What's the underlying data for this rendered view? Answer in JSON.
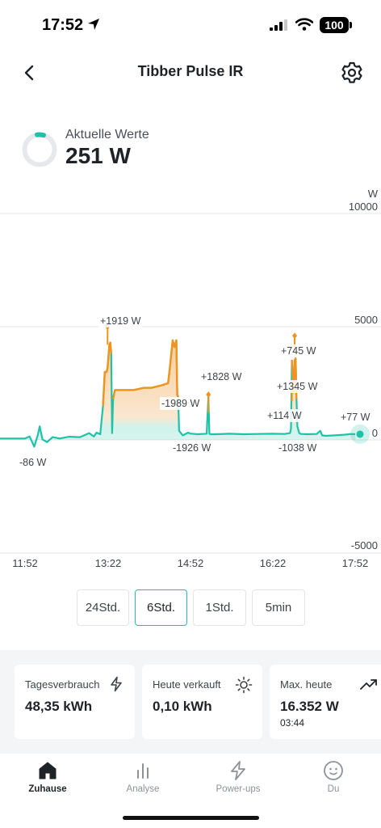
{
  "status_bar": {
    "time": "17:52",
    "battery": "100"
  },
  "header": {
    "title": "Tibber Pulse IR"
  },
  "current": {
    "label": "Aktuelle Werte",
    "value": "251 W"
  },
  "chart_data": {
    "type": "area",
    "y_unit": "W",
    "ylim": [
      -5000,
      10000
    ],
    "y_ticks": [
      "10000",
      "5000",
      "0",
      "-5000"
    ],
    "x_ticks": [
      "11:52",
      "13:22",
      "14:52",
      "16:22",
      "17:52"
    ],
    "x_range": [
      "11:52",
      "17:52"
    ],
    "grid": true,
    "series": [
      {
        "x": [
          "11:52",
          "11:57",
          "12:02",
          "12:06",
          "12:08",
          "12:11",
          "12:16",
          "12:22",
          "12:30",
          "12:40",
          "12:52",
          "13:02",
          "13:07",
          "13:10",
          "13:14",
          "13:17",
          "13:19",
          "13:21",
          "13:22",
          "13:24",
          "13:25",
          "13:26",
          "13:27",
          "13:28",
          "13:30",
          "13:33",
          "13:40",
          "13:50",
          "14:02",
          "14:10",
          "14:20",
          "14:28",
          "14:30",
          "14:33",
          "14:35",
          "14:37",
          "14:38",
          "14:39",
          "14:40",
          "14:42",
          "14:44",
          "14:50",
          "14:52",
          "15:00",
          "15:10",
          "15:12",
          "15:13",
          "15:14",
          "15:20",
          "15:35",
          "15:50",
          "16:05",
          "16:22",
          "16:35",
          "16:41",
          "16:42",
          "16:43",
          "16:44",
          "16:45",
          "16:46",
          "16:47",
          "16:48",
          "16:49",
          "16:51",
          "16:53",
          "17:00",
          "17:10",
          "17:14",
          "17:16",
          "17:20",
          "17:30",
          "17:40",
          "17:48",
          "17:52"
        ],
        "y": [
          60,
          150,
          -300,
          220,
          600,
          20,
          -100,
          120,
          60,
          140,
          120,
          300,
          150,
          320,
          250,
          1500,
          3000,
          3000,
          3200,
          4200,
          4300,
          3800,
          300,
          1800,
          2200,
          2200,
          2200,
          2200,
          2300,
          2300,
          2400,
          2500,
          3200,
          4400,
          4100,
          4400,
          2000,
          1900,
          400,
          300,
          200,
          320,
          280,
          250,
          270,
          1900,
          280,
          250,
          250,
          270,
          250,
          260,
          270,
          260,
          300,
          500,
          3500,
          2800,
          2100,
          3500,
          3600,
          1800,
          600,
          300,
          260,
          250,
          260,
          400,
          200,
          180,
          200,
          230,
          260,
          251
        ]
      }
    ],
    "annotations": [
      {
        "text": "+1919 W",
        "x": "13:22",
        "y": 4300
      },
      {
        "text": "-1989 W",
        "x": "14:28",
        "y": 2300
      },
      {
        "text": "+1828 W",
        "x": "15:12",
        "y": 1900
      },
      {
        "text": "-1926 W",
        "x": "14:38",
        "y": 250
      },
      {
        "text": "-86 W",
        "x": "12:06",
        "y": -300
      },
      {
        "text": "+745 W",
        "x": "16:46",
        "y": 3600
      },
      {
        "text": "+1345 W",
        "x": "16:43",
        "y": 2000
      },
      {
        "text": "+114 W",
        "x": "16:40",
        "y": 300
      },
      {
        "text": "-1038 W",
        "x": "16:48",
        "y": 250
      },
      {
        "text": "+77 W",
        "x": "17:39",
        "y": 260
      }
    ],
    "colors": {
      "consumption": "#f0931f",
      "base": "#1fc2a6"
    }
  },
  "ranges": [
    {
      "label": "24Std.",
      "active": false
    },
    {
      "label": "6Std.",
      "active": true
    },
    {
      "label": "1Std.",
      "active": false
    },
    {
      "label": "5min",
      "active": false
    }
  ],
  "stats": [
    {
      "label": "Tagesverbrauch",
      "value": "48,35 kWh",
      "icon": "bolt-icon"
    },
    {
      "label": "Heute verkauft",
      "value": "0,10 kWh",
      "icon": "sun-icon"
    },
    {
      "label": "Max. heute",
      "value": "16.352 W",
      "sub": "03:44",
      "icon": "trend-up-icon"
    }
  ],
  "nav": [
    {
      "label": "Zuhause",
      "icon": "home-icon",
      "active": true
    },
    {
      "label": "Analyse",
      "icon": "chart-bars-icon",
      "active": false
    },
    {
      "label": "Power-ups",
      "icon": "bolt-icon",
      "active": false
    },
    {
      "label": "Du",
      "icon": "face-icon",
      "active": false
    }
  ],
  "colors": {
    "accent": "#1fc2a6",
    "orange": "#f0931f"
  }
}
